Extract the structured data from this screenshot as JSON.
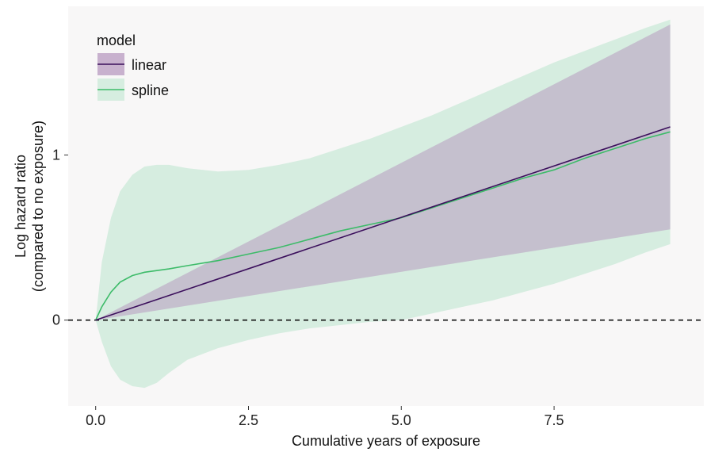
{
  "chart_data": {
    "type": "line",
    "title": "",
    "xlabel": "Cumulative years of exposure",
    "ylabel": [
      "Log hazard ratio",
      "(compared to no exposure)"
    ],
    "xlim": [
      -0.45,
      9.95
    ],
    "ylim": [
      -0.52,
      1.9
    ],
    "x_ticks": [
      0.0,
      2.5,
      5.0,
      7.5
    ],
    "x_tick_labels": [
      "0.0",
      "2.5",
      "5.0",
      "7.5"
    ],
    "y_ticks": [
      0,
      1
    ],
    "y_tick_labels": [
      "0",
      "1"
    ],
    "reference_line": {
      "y": 0,
      "style": "dashed"
    },
    "grid": false,
    "legend": {
      "title": "model",
      "placement": "top-left",
      "entries": [
        "linear",
        "spline"
      ]
    },
    "series": [
      {
        "name": "linear",
        "color": "#3b0f5c",
        "fill": "#b89ac0",
        "x": [
          0,
          9.4
        ],
        "y": [
          0,
          1.17
        ],
        "lower": [
          0,
          0.55
        ],
        "upper": [
          0,
          1.79
        ]
      },
      {
        "name": "spline",
        "color": "#3dbb69",
        "fill": "#d6ede0",
        "x": [
          0,
          0.1,
          0.25,
          0.4,
          0.6,
          0.8,
          1.0,
          1.2,
          1.5,
          2.0,
          2.5,
          3.0,
          3.5,
          4.0,
          4.5,
          5.0,
          5.5,
          6.0,
          6.5,
          7.0,
          7.5,
          8.0,
          8.5,
          9.0,
          9.4
        ],
        "y": [
          0,
          0.08,
          0.17,
          0.23,
          0.27,
          0.29,
          0.3,
          0.31,
          0.33,
          0.36,
          0.4,
          0.44,
          0.49,
          0.54,
          0.58,
          0.62,
          0.68,
          0.74,
          0.8,
          0.86,
          0.91,
          0.98,
          1.04,
          1.1,
          1.14
        ],
        "lower": [
          0,
          -0.13,
          -0.28,
          -0.36,
          -0.4,
          -0.41,
          -0.38,
          -0.32,
          -0.24,
          -0.17,
          -0.12,
          -0.08,
          -0.05,
          -0.03,
          -0.01,
          0.0,
          0.04,
          0.08,
          0.12,
          0.17,
          0.22,
          0.28,
          0.34,
          0.41,
          0.46
        ],
        "upper": [
          0,
          0.35,
          0.62,
          0.78,
          0.88,
          0.93,
          0.94,
          0.94,
          0.92,
          0.9,
          0.91,
          0.94,
          0.98,
          1.04,
          1.1,
          1.17,
          1.24,
          1.32,
          1.4,
          1.48,
          1.56,
          1.63,
          1.7,
          1.77,
          1.82
        ]
      }
    ]
  }
}
